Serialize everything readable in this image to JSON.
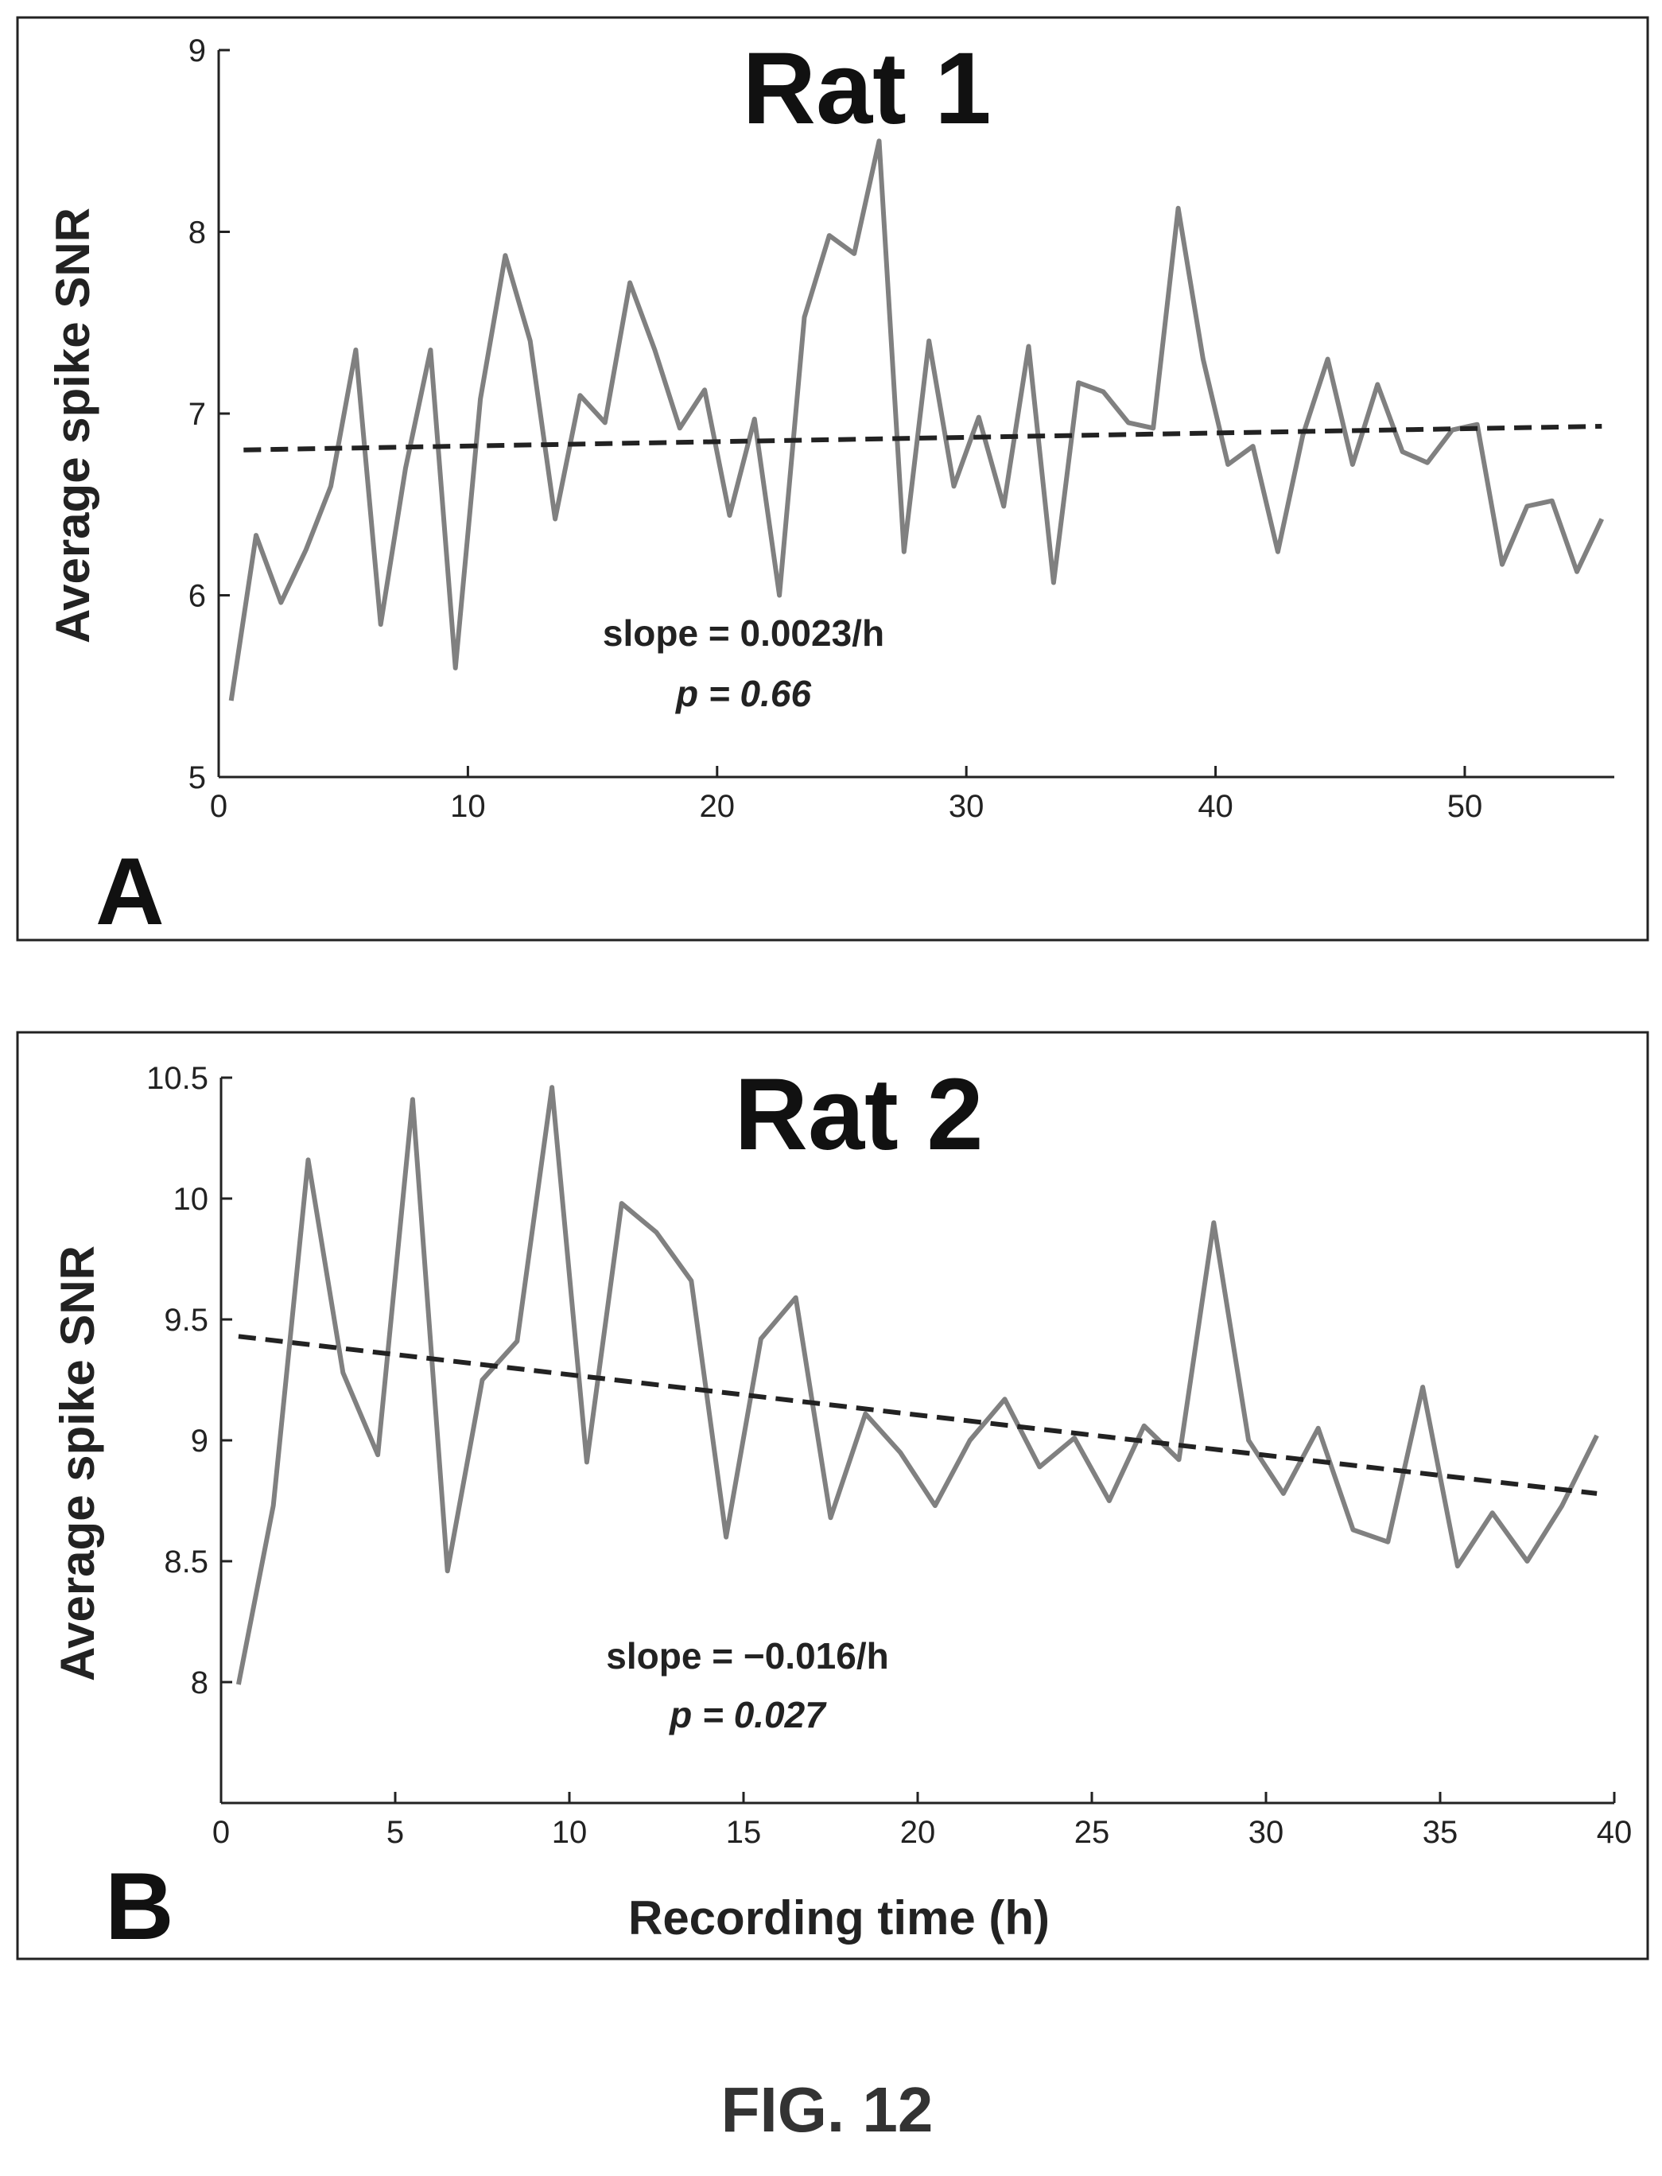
{
  "figure_caption": "FIG. 12",
  "chart_data": [
    {
      "type": "line",
      "panel_label": "A",
      "title": "Rat 1",
      "ylabel": "Average spike SNR",
      "xlabel": "",
      "xlim": [
        0,
        56
      ],
      "ylim": [
        5,
        9
      ],
      "xticks": [
        0,
        10,
        20,
        30,
        40,
        50
      ],
      "yticks": [
        5,
        6,
        7,
        8,
        9
      ],
      "annotation": {
        "slope": "slope = 0.0023/h",
        "p": "p = 0.66"
      },
      "series": [
        {
          "x": [
            0.5,
            1.5,
            2.5,
            3.5,
            4.5,
            5.5,
            6.5,
            7.5,
            8.5,
            9.5,
            10.5,
            11.5,
            12.5,
            13.5,
            14.5,
            15.5,
            16.5,
            17.5,
            18.5,
            19.5,
            20.5,
            21.5,
            22.5,
            23.5,
            24.5,
            25.5,
            26.5,
            27.5,
            28.5,
            29.5,
            30.5,
            31.5,
            32.5,
            33.5,
            34.5,
            35.5,
            36.5,
            37.5,
            38.5,
            39.5,
            40.5,
            41.5,
            42.5,
            43.5,
            44.5,
            45.5,
            46.5,
            47.5,
            48.5,
            49.5,
            50.5,
            51.5,
            52.5,
            53.5,
            54.5,
            55.5
          ],
          "values": [
            5.42,
            6.33,
            5.96,
            6.25,
            6.6,
            7.35,
            5.84,
            6.7,
            7.35,
            5.6,
            7.08,
            7.87,
            7.4,
            6.42,
            7.1,
            6.95,
            7.72,
            7.35,
            6.92,
            7.13,
            6.44,
            6.97,
            6.0,
            7.53,
            7.98,
            7.88,
            8.5,
            6.24,
            7.4,
            6.6,
            6.98,
            6.49,
            7.37,
            6.07,
            7.17,
            7.12,
            6.95,
            6.92,
            8.13,
            7.3,
            6.72,
            6.82,
            6.24,
            6.88,
            7.3,
            6.72,
            7.16,
            6.79,
            6.73,
            6.91,
            6.94,
            6.17,
            6.49,
            6.52,
            6.13,
            6.42
          ]
        },
        {
          "name": "",
          "style": "dashed",
          "x": [
            1,
            55.5
          ],
          "values": [
            6.8,
            6.93
          ]
        }
      ]
    },
    {
      "type": "line",
      "panel_label": "B",
      "title": "Rat 2",
      "ylabel": "Average spike SNR",
      "xlabel": "Recording time (h)",
      "xlim": [
        0,
        40
      ],
      "ylim": [
        7.5,
        10.5
      ],
      "xticks": [
        0,
        5,
        10,
        15,
        20,
        25,
        30,
        35,
        40
      ],
      "yticks": [
        8,
        8.5,
        9,
        9.5,
        10,
        10.5
      ],
      "annotation": {
        "slope": "slope = −0.016/h",
        "p": "p = 0.027"
      },
      "series": [
        {
          "x": [
            0.5,
            1.5,
            2.5,
            3.5,
            4.5,
            5.5,
            6.5,
            7.5,
            8.5,
            9.5,
            10.5,
            11.5,
            12.5,
            13.5,
            14.5,
            15.5,
            16.5,
            17.5,
            18.5,
            19.5,
            20.5,
            21.5,
            22.5,
            23.5,
            24.5,
            25.5,
            26.5,
            27.5,
            28.5,
            29.5,
            30.5,
            31.5,
            32.5,
            33.5,
            34.5,
            35.5,
            36.5,
            37.5,
            38.5,
            39.5
          ],
          "values": [
            7.99,
            8.73,
            10.16,
            9.28,
            8.94,
            10.41,
            8.46,
            9.25,
            9.41,
            10.46,
            8.91,
            9.98,
            9.86,
            9.66,
            8.6,
            9.42,
            9.59,
            8.68,
            9.11,
            8.95,
            8.73,
            9.0,
            9.17,
            8.89,
            9.01,
            8.75,
            9.06,
            8.92,
            9.9,
            9.0,
            8.78,
            9.05,
            8.63,
            8.58,
            9.22,
            8.48,
            8.7,
            8.5,
            8.73,
            9.02
          ]
        },
        {
          "name": "",
          "style": "dashed",
          "x": [
            0.5,
            39.5
          ],
          "values": [
            9.43,
            8.78
          ]
        }
      ]
    }
  ]
}
